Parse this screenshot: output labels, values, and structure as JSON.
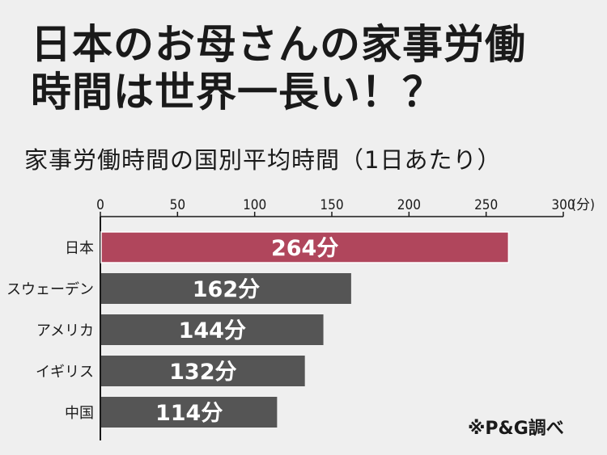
{
  "title_line1": "日本のお母さんの家事労働",
  "title_line2": "時間は世界一長い！？",
  "source": "※P&G調べ",
  "colors": {
    "highlight": "#b0465c",
    "bar": "#555555",
    "axis": "#1a1a1a"
  },
  "chart_data": {
    "type": "bar",
    "orientation": "horizontal",
    "title": "家事労働時間の国別平均時間（1日あたり）",
    "xlim": [
      0,
      300
    ],
    "ticks": [
      "0",
      "50",
      "100",
      "150",
      "200",
      "250",
      "300"
    ],
    "tick_values": [
      0,
      50,
      100,
      150,
      200,
      250,
      300
    ],
    "unit_label": "(分)",
    "categories": [
      "日本",
      "スウェーデン",
      "アメリカ",
      "イギリス",
      "中国"
    ],
    "values": [
      264,
      162,
      144,
      132,
      114
    ],
    "value_labels": [
      "264分",
      "162分",
      "144分",
      "132分",
      "114分"
    ],
    "highlight_category": "日本",
    "grid": false
  }
}
